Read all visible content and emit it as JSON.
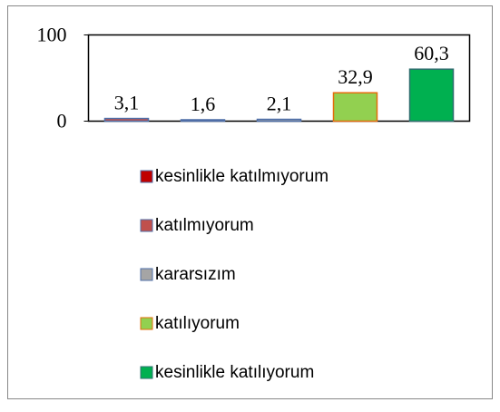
{
  "chart_data": {
    "type": "bar",
    "series": [
      {
        "name": "kesinlikle katılmıyorum",
        "color": "#c0504d",
        "edgecolor": "#4f6fa8",
        "values": [
          3.1
        ],
        "value_labels": [
          "3,1"
        ]
      },
      {
        "name": "katılmıyorum",
        "color": "#c0504d",
        "edgecolor": "#4f6fa8",
        "values": [
          1.6
        ],
        "value_labels": [
          "1,6"
        ]
      },
      {
        "name": "kararsızım",
        "color": "#a5a5a5",
        "edgecolor": "#4f6fa8",
        "values": [
          2.1
        ],
        "value_labels": [
          "2,1"
        ]
      },
      {
        "name": "katılıyorum",
        "color": "#92d050",
        "edgecolor": "#e46c0a",
        "values": [
          32.9
        ],
        "value_labels": [
          "32,9"
        ]
      },
      {
        "name": "kesinlikle katılıyorum",
        "color": "#00b050",
        "edgecolor": "#2f6f6f",
        "values": [
          60.3
        ],
        "value_labels": [
          "60,3"
        ]
      }
    ],
    "legend_colors": [
      "#c00000",
      "#c0504d",
      "#a5a5a5",
      "#92d050",
      "#00b050"
    ],
    "ylim": [
      0,
      100
    ],
    "yticks": [
      0,
      100
    ],
    "legend": "bottom"
  }
}
